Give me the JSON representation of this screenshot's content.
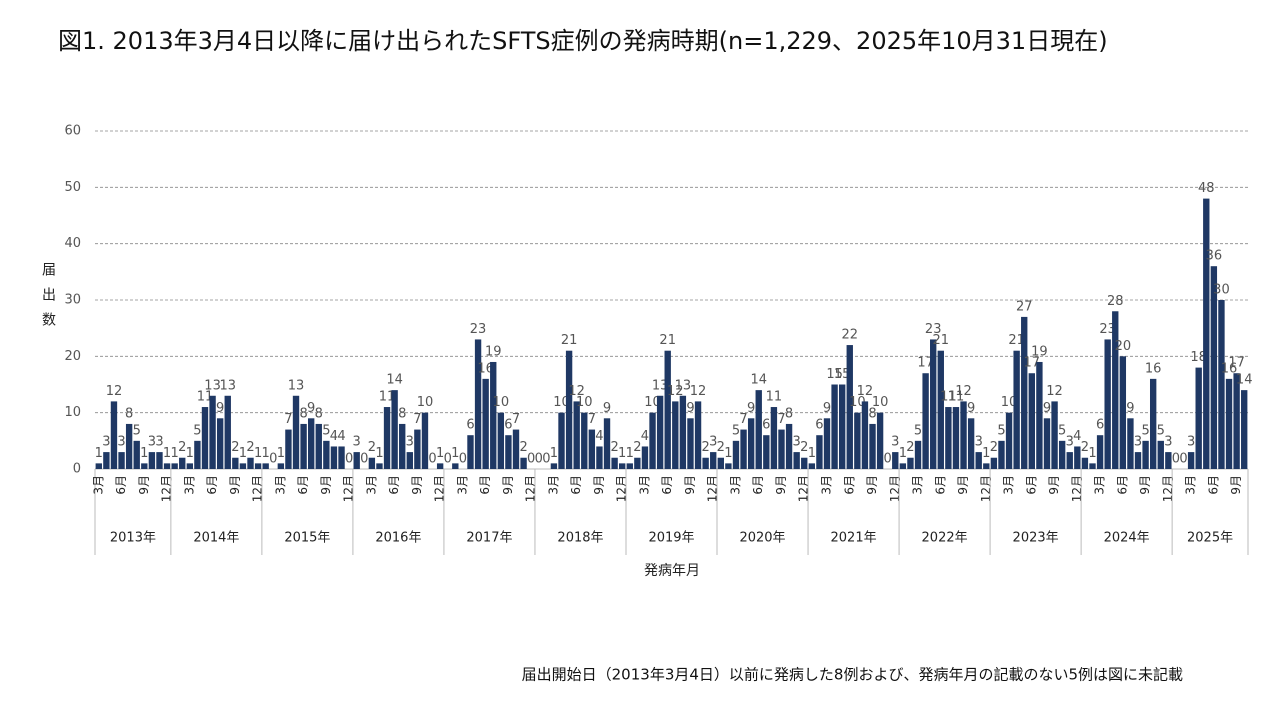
{
  "chart_data": {
    "type": "bar",
    "title": "図1. 2013年3月4日以降に届け出られたSFTS症例の発病時期(n=1,229、2025年10月31日現在)",
    "y_label": "届出数",
    "x_label": "発病年月",
    "footnote": "届出開始日（2013年3月4日）以前に発病した8例および、発病年月の記載のない5例は図に未記載",
    "color": "#1f3864",
    "grid": true,
    "ylim": [
      0,
      60
    ],
    "yticks": [
      0,
      10,
      20,
      30,
      40,
      50,
      60
    ],
    "years": [
      "2013年",
      "2014年",
      "2015年",
      "2016年",
      "2017年",
      "2018年",
      "2019年",
      "2020年",
      "2021年",
      "2022年",
      "2023年",
      "2024年",
      "2025年"
    ],
    "categories": [
      "3月",
      null,
      null,
      "6月",
      null,
      null,
      "9月",
      null,
      null,
      "12月",
      null,
      null,
      "3月",
      null,
      null,
      "6月",
      null,
      null,
      "9月",
      null,
      null,
      "12月",
      null,
      null,
      "3月",
      null,
      null,
      "6月",
      null,
      null,
      "9月",
      null,
      null,
      "12月",
      null,
      null,
      "3月",
      null,
      null,
      "6月",
      null,
      null,
      "9月",
      null,
      null,
      "12月",
      null,
      null,
      "3月",
      null,
      null,
      "6月",
      null,
      null,
      "9月",
      null,
      null,
      "12月",
      null,
      null,
      "3月",
      null,
      null,
      "6月",
      null,
      null,
      "9月",
      null,
      null,
      "12月",
      null,
      null,
      "3月",
      null,
      null,
      "6月",
      null,
      null,
      "9月",
      null,
      null,
      "12月",
      null,
      null,
      "3月",
      null,
      null,
      "6月",
      null,
      null,
      "9月",
      null,
      null,
      "12月",
      null,
      null,
      "3月",
      null,
      null,
      "6月",
      null,
      null,
      "9月",
      null,
      null,
      "12月",
      null,
      null,
      "3月",
      null,
      null,
      "6月",
      null,
      null,
      "9月",
      null,
      null,
      "12月",
      null,
      null,
      "3月",
      null,
      null,
      "6月",
      null,
      null,
      "9月",
      null,
      null,
      "12月",
      null,
      null,
      "3月",
      null,
      null,
      "6月",
      null,
      null,
      "9月",
      null,
      null,
      "12月",
      null,
      null,
      "3月",
      null,
      null,
      "6月",
      null,
      null,
      "9月",
      null
    ],
    "values": [
      1,
      3,
      12,
      3,
      8,
      5,
      1,
      3,
      3,
      1,
      1,
      2,
      1,
      5,
      11,
      13,
      9,
      13,
      2,
      1,
      2,
      1,
      1,
      0,
      1,
      7,
      13,
      8,
      9,
      8,
      5,
      4,
      4,
      0,
      3,
      0,
      2,
      1,
      11,
      14,
      8,
      3,
      7,
      10,
      0,
      1,
      0,
      1,
      0,
      6,
      23,
      16,
      19,
      10,
      6,
      7,
      2,
      0,
      0,
      0,
      1,
      10,
      21,
      12,
      10,
      7,
      4,
      9,
      2,
      1,
      1,
      2,
      4,
      10,
      13,
      21,
      12,
      13,
      9,
      12,
      2,
      3,
      2,
      1,
      5,
      7,
      9,
      14,
      6,
      11,
      7,
      8,
      3,
      2,
      1,
      6,
      9,
      15,
      15,
      22,
      10,
      12,
      8,
      10,
      0,
      3,
      1,
      2,
      5,
      17,
      23,
      21,
      11,
      11,
      12,
      9,
      3,
      1,
      2,
      5,
      10,
      21,
      27,
      17,
      19,
      9,
      12,
      5,
      3,
      4,
      2,
      1,
      6,
      23,
      28,
      20,
      9,
      3,
      5,
      16,
      5,
      3,
      0,
      0,
      3,
      18,
      48,
      36,
      30,
      16,
      17,
      14
    ]
  }
}
